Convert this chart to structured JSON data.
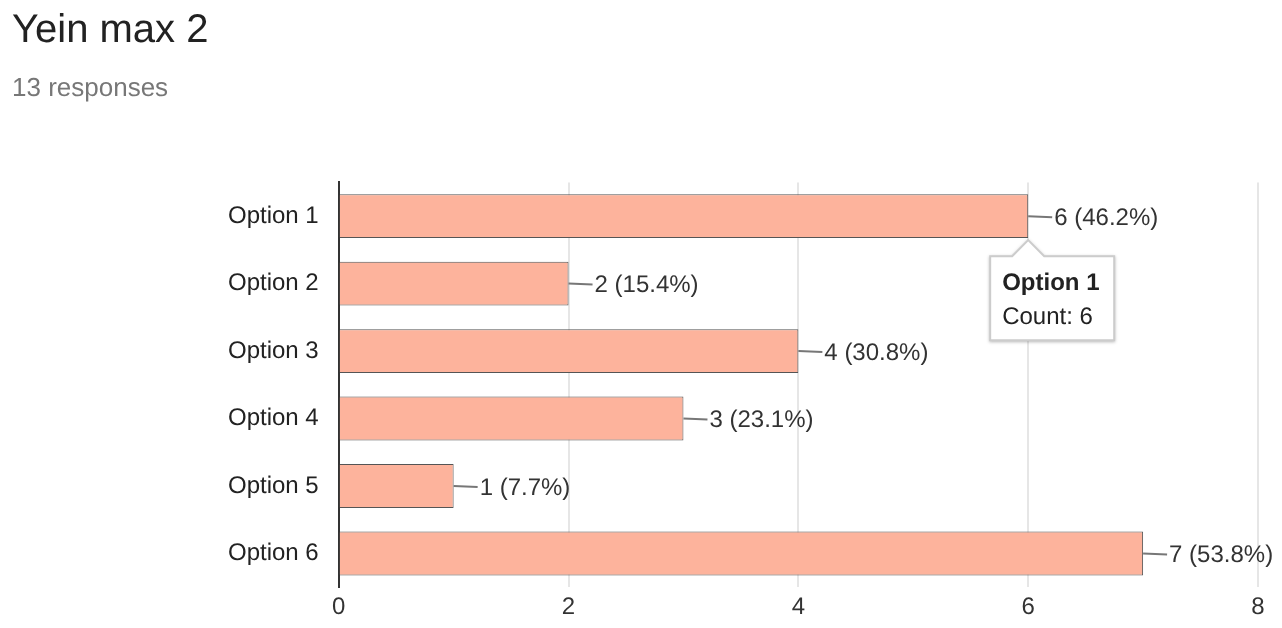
{
  "chart_data": {
    "type": "bar",
    "orientation": "horizontal",
    "title": "Yein max 2",
    "subtitle": "13 responses",
    "categories": [
      "Option 1",
      "Option 2",
      "Option 3",
      "Option 4",
      "Option 5",
      "Option 6"
    ],
    "values": [
      6,
      2,
      4,
      3,
      1,
      7
    ],
    "value_labels": [
      "6 (46.2%)",
      "2 (15.4%)",
      "4 (30.8%)",
      "3 (23.1%)",
      "1 (7.7%)",
      "7 (53.8%)"
    ],
    "color": "#fdb39c",
    "xlim": [
      0,
      8
    ],
    "xticks": [
      0,
      2,
      4,
      6,
      8
    ],
    "grid": "x",
    "legend": false,
    "annotations": [
      {
        "text": "Option 1\nCount: 6",
        "x": 6,
        "y": "Option 1"
      }
    ]
  }
}
